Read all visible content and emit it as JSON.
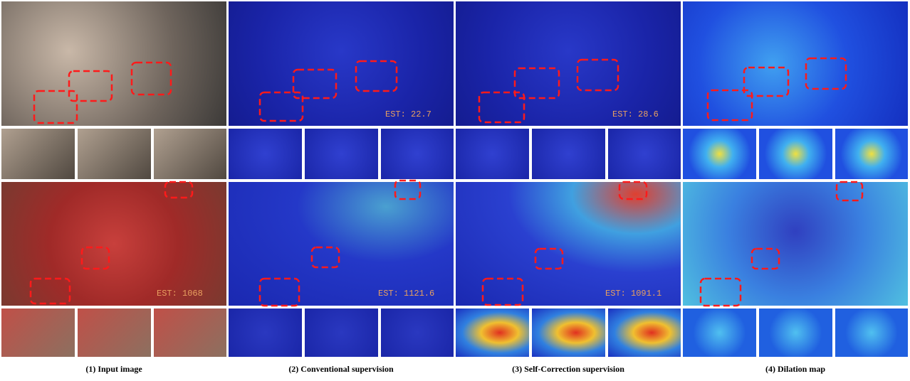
{
  "figure": {
    "columns": [
      {
        "caption": "(1) Input image",
        "bottom_est": "EST: 1068"
      },
      {
        "caption": "(2) Conventional supervision",
        "top_est": "EST: 22.7",
        "bottom_est": "EST: 1121.6"
      },
      {
        "caption": "(3) Self-Correction supervision",
        "top_est": "EST: 28.6",
        "bottom_est": "EST: 1091.1"
      },
      {
        "caption": "(4) Dilation map"
      }
    ]
  }
}
